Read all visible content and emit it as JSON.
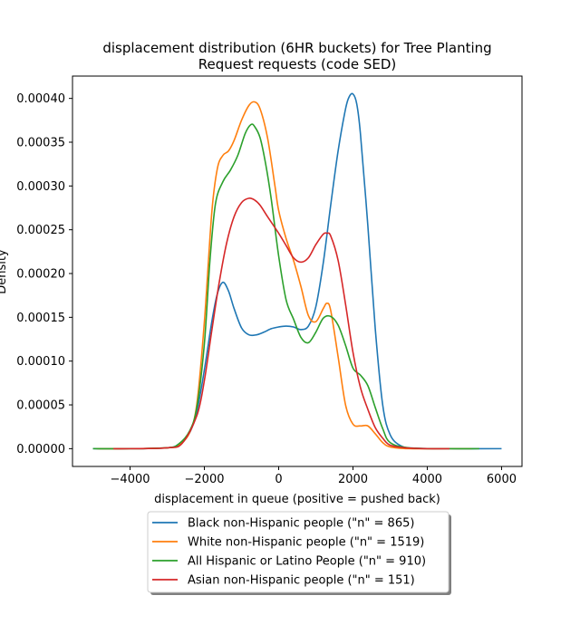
{
  "chart_data": {
    "type": "line",
    "title_line1": "displacement distribution (6HR buckets) for Tree Planting",
    "title_line2": "Request requests (code SED)",
    "xlabel": "displacement in queue (positive = pushed back)",
    "ylabel": "Density",
    "xlim": [
      -5550,
      6550
    ],
    "ylim": [
      -2.03e-05,
      0.0004255
    ],
    "x_ticks": [
      -4000,
      -2000,
      0,
      2000,
      4000,
      6000
    ],
    "x_tick_labels": [
      "−4000",
      "−2000",
      "0",
      "2000",
      "4000",
      "6000"
    ],
    "y_ticks": [
      0,
      5e-05,
      0.0001,
      0.00015,
      0.0002,
      0.00025,
      0.0003,
      0.00035,
      0.0004
    ],
    "y_tick_labels": [
      "0.00000",
      "0.00005",
      "0.00010",
      "0.00015",
      "0.00020",
      "0.00025",
      "0.00030",
      "0.00035",
      "0.00040"
    ],
    "grid": false,
    "legend_placement": "below plot",
    "series": [
      {
        "name": "Black non-Hispanic people (\"n\" = 865)",
        "color": "#1f77b4",
        "x": [
          -5000,
          -4000,
          -3000,
          -2700,
          -2400,
          -2200,
          -2000,
          -1800,
          -1650,
          -1500,
          -1350,
          -1200,
          -1000,
          -800,
          -600,
          -400,
          -200,
          0,
          200,
          400,
          600,
          800,
          1000,
          1200,
          1400,
          1600,
          1800,
          1900,
          2000,
          2100,
          2200,
          2400,
          2600,
          2800,
          3000,
          3300,
          3700,
          4500,
          6000
        ],
        "y": [
          0,
          0,
          1e-06,
          5e-06,
          1.8e-05,
          4.3e-05,
          9e-05,
          0.000145,
          0.000177,
          0.00019,
          0.00018,
          0.00016,
          0.000138,
          0.00013,
          0.00013,
          0.000133,
          0.000137,
          0.000139,
          0.00014,
          0.000139,
          0.000136,
          0.00014,
          0.000162,
          0.000212,
          0.000278,
          0.00034,
          0.000388,
          0.000402,
          0.000405,
          0.000394,
          0.00036,
          0.000255,
          0.000137,
          5e-05,
          1.6e-05,
          3e-06,
          5e-07,
          0,
          0
        ]
      },
      {
        "name": "White non-Hispanic people (\"n\" = 1519)",
        "color": "#ff7f0e",
        "x": [
          -4900,
          -4000,
          -3000,
          -2700,
          -2400,
          -2200,
          -2000,
          -1800,
          -1650,
          -1500,
          -1350,
          -1200,
          -1000,
          -800,
          -650,
          -500,
          -300,
          -100,
          0,
          200,
          400,
          600,
          800,
          1000,
          1200,
          1300,
          1400,
          1600,
          1800,
          2000,
          2200,
          2400,
          2600,
          2800,
          3000,
          3500,
          4500,
          5200
        ],
        "y": [
          0,
          0,
          1e-06,
          4e-06,
          1.8e-05,
          5.2e-05,
          0.000145,
          0.00027,
          0.00032,
          0.000335,
          0.00034,
          0.000352,
          0.000375,
          0.000392,
          0.000396,
          0.000388,
          0.000355,
          0.0003,
          0.000272,
          0.00024,
          0.000215,
          0.000185,
          0.000152,
          0.000145,
          0.00016,
          0.000166,
          0.000158,
          0.000105,
          5e-05,
          2.8e-05,
          2.6e-05,
          2.6e-05,
          1.7e-05,
          7e-06,
          2e-06,
          0,
          0,
          0
        ]
      },
      {
        "name": "All Hispanic or Latino People (\"n\" = 910)",
        "color": "#2ca02c",
        "x": [
          -5000,
          -4000,
          -3000,
          -2700,
          -2400,
          -2200,
          -2000,
          -1850,
          -1700,
          -1500,
          -1300,
          -1100,
          -900,
          -750,
          -650,
          -500,
          -350,
          -200,
          0,
          200,
          400,
          600,
          800,
          1000,
          1200,
          1400,
          1600,
          1800,
          2000,
          2200,
          2400,
          2600,
          2800,
          3000,
          3500,
          4500,
          5400
        ],
        "y": [
          0,
          0,
          1e-06,
          5e-06,
          2e-05,
          4.8e-05,
          0.00012,
          0.000215,
          0.00028,
          0.000305,
          0.000318,
          0.000335,
          0.00036,
          0.00037,
          0.000368,
          0.000355,
          0.000325,
          0.000285,
          0.00022,
          0.00017,
          0.000148,
          0.000127,
          0.000121,
          0.000133,
          0.000149,
          0.000151,
          0.000141,
          0.000118,
          9.2e-05,
          8.4e-05,
          7.2e-05,
          4.7e-05,
          2.3e-05,
          7e-06,
          1e-06,
          0,
          0
        ]
      },
      {
        "name": "Asian non-Hispanic people (\"n\" = 151)",
        "color": "#d62728",
        "x": [
          -4450,
          -4000,
          -3000,
          -2600,
          -2200,
          -2000,
          -1800,
          -1600,
          -1400,
          -1200,
          -1000,
          -800,
          -650,
          -500,
          -300,
          0,
          200,
          400,
          600,
          800,
          1000,
          1200,
          1300,
          1400,
          1600,
          1800,
          2000,
          2200,
          2400,
          2600,
          2800,
          3000,
          3400,
          4000,
          4600
        ],
        "y": [
          0,
          0,
          1e-06,
          6e-06,
          3.8e-05,
          7.8e-05,
          0.000135,
          0.00019,
          0.000235,
          0.000265,
          0.000281,
          0.000286,
          0.000284,
          0.000278,
          0.000265,
          0.000246,
          0.000232,
          0.000218,
          0.000213,
          0.000218,
          0.000233,
          0.000245,
          0.000246,
          0.000243,
          0.000215,
          0.000165,
          0.00011,
          7e-05,
          4.5e-05,
          2.4e-05,
          1.2e-05,
          4e-06,
          1e-06,
          0,
          0
        ]
      }
    ]
  }
}
